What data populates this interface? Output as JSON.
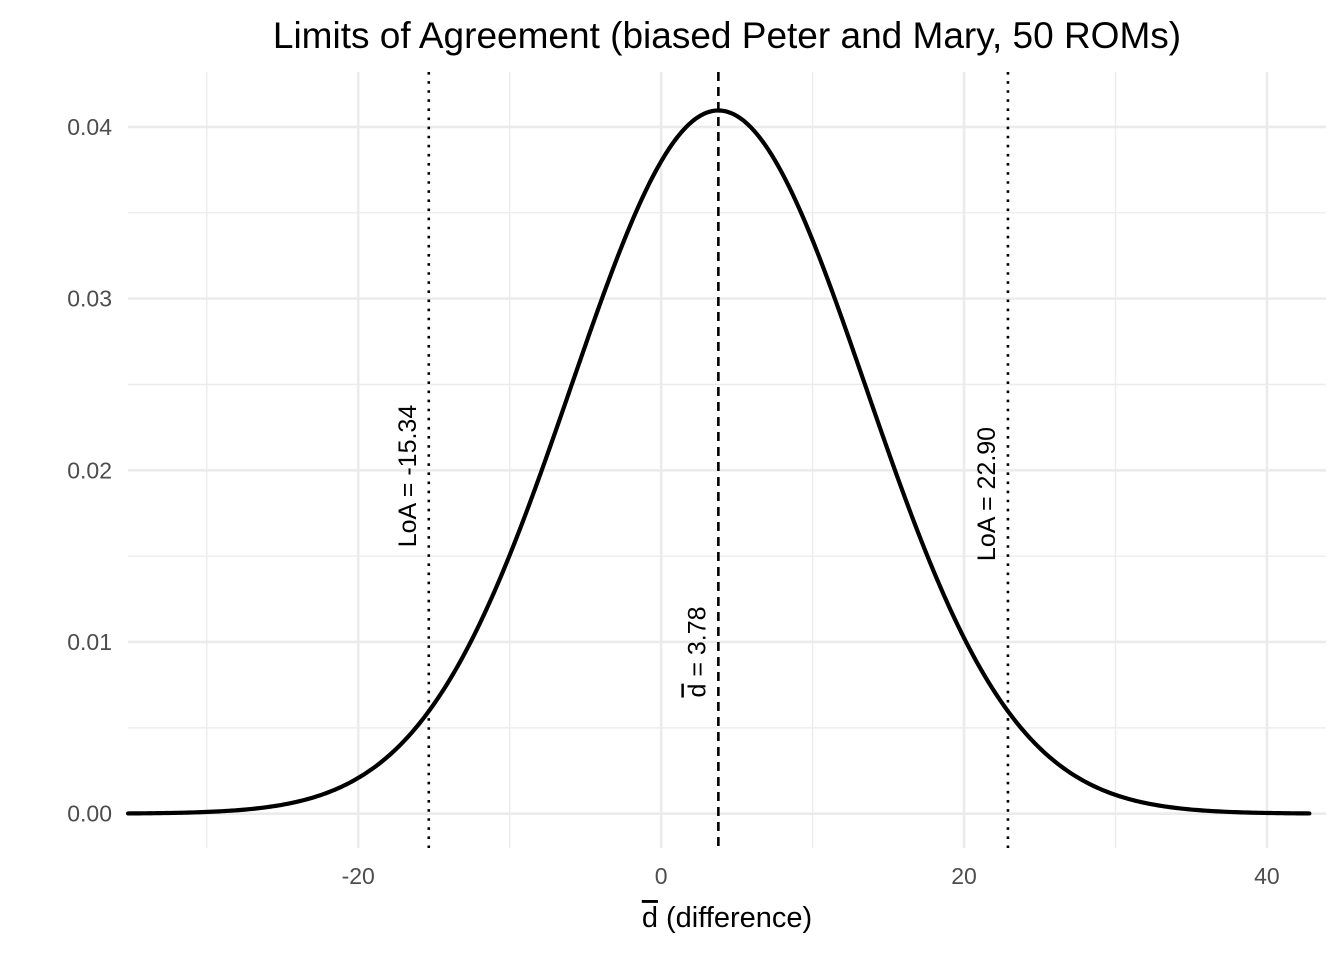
{
  "chart_data": {
    "type": "line",
    "title": "Limits of Agreement (biased Peter and Mary, 50 ROMs)",
    "xlabel": "d (difference)",
    "xlabel_symbol": "d",
    "xlabel_rest": " (difference)",
    "ylabel": "",
    "xlim": [
      -35.2,
      43.9
    ],
    "ylim": [
      -0.002,
      0.0432
    ],
    "x_ticks": [
      -20,
      0,
      20,
      40
    ],
    "x_tick_labels": [
      "-20",
      "0",
      "20",
      "40"
    ],
    "x_minor_ticks": [
      -30,
      -10,
      10,
      30
    ],
    "y_ticks": [
      0.0,
      0.01,
      0.02,
      0.03,
      0.04
    ],
    "y_tick_labels": [
      "0.00",
      "0.01",
      "0.02",
      "0.03",
      "0.04"
    ],
    "y_minor_ticks": [
      0.005,
      0.015,
      0.025,
      0.035
    ],
    "grid": true,
    "series": [
      {
        "color": "#000000",
        "distribution": "normal density",
        "mean": 3.78,
        "sd": 9.74,
        "x_range": [
          -35.2,
          42.8
        ]
      }
    ],
    "vlines": [
      {
        "x": -15.34,
        "style": "dotted",
        "label": "LoA = -15.34"
      },
      {
        "x": 3.78,
        "style": "dashed",
        "label": "d = 3.78",
        "label_symbol": "d",
        "label_rest": " = 3.78"
      },
      {
        "x": 22.9,
        "style": "dotted",
        "label": "LoA = 22.90"
      }
    ]
  }
}
